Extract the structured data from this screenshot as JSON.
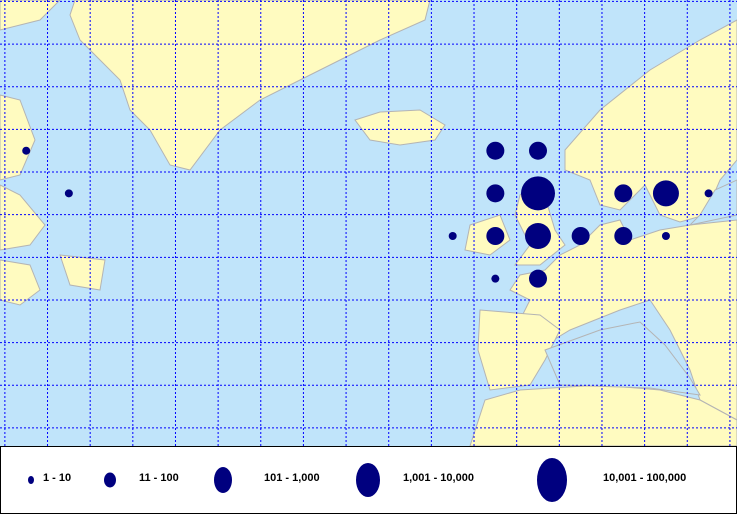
{
  "map": {
    "colors": {
      "water": "#c0e4fa",
      "land": "#fffbc0",
      "border": "#b4b4b4",
      "grid": "#0000ff",
      "symbol": "#00007f"
    },
    "grid_spacing_degrees": 5,
    "points": [
      {
        "lon": -62.5,
        "lat": 62.5,
        "class": 0
      },
      {
        "lon": -57.5,
        "lat": 57.5,
        "class": 0
      },
      {
        "lon": -7.5,
        "lat": 62.5,
        "class": 2
      },
      {
        "lon": -2.5,
        "lat": 62.5,
        "class": 2
      },
      {
        "lon": -7.5,
        "lat": 57.5,
        "class": 2
      },
      {
        "lon": -2.5,
        "lat": 57.5,
        "class": 4
      },
      {
        "lon": 7.5,
        "lat": 57.5,
        "class": 2
      },
      {
        "lon": 12.5,
        "lat": 57.5,
        "class": 3
      },
      {
        "lon": 17.5,
        "lat": 57.5,
        "class": 0
      },
      {
        "lon": -12.5,
        "lat": 52.5,
        "class": 0
      },
      {
        "lon": -7.5,
        "lat": 52.5,
        "class": 2
      },
      {
        "lon": -2.5,
        "lat": 52.5,
        "class": 3
      },
      {
        "lon": 2.5,
        "lat": 52.5,
        "class": 2
      },
      {
        "lon": 7.5,
        "lat": 52.5,
        "class": 2
      },
      {
        "lon": 12.5,
        "lat": 52.5,
        "class": 0
      },
      {
        "lon": -7.5,
        "lat": 47.5,
        "class": 0
      },
      {
        "lon": -2.5,
        "lat": 47.5,
        "class": 2
      }
    ]
  },
  "legend": {
    "classes": [
      {
        "label": "1 - 10"
      },
      {
        "label": "11 - 100"
      },
      {
        "label": "101 - 1,000"
      },
      {
        "label": "1,001 - 10,000"
      },
      {
        "label": "10,001 - 100,000"
      }
    ]
  }
}
